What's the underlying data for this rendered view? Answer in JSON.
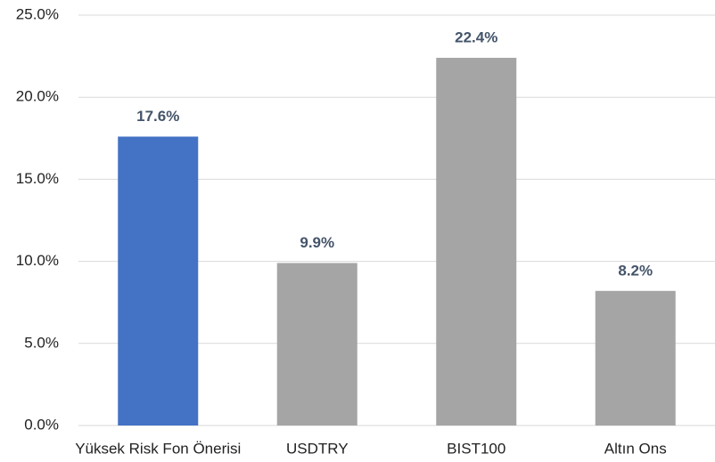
{
  "chart_data": {
    "type": "bar",
    "categories": [
      "Yüksek Risk Fon Önerisi",
      "USDTRY",
      "BIST100",
      "Altın Ons"
    ],
    "values": [
      17.6,
      9.9,
      22.4,
      8.2
    ],
    "value_labels": [
      "17.6%",
      "9.9%",
      "22.4%",
      "8.2%"
    ],
    "colors": [
      "#4472c4",
      "#a5a5a5",
      "#a5a5a5",
      "#a5a5a5"
    ],
    "ylim": [
      0,
      25
    ],
    "yticks": [
      {
        "value": 0,
        "label": "0.0%"
      },
      {
        "value": 5,
        "label": "5.0%"
      },
      {
        "value": 10,
        "label": "10.0%"
      },
      {
        "value": 15,
        "label": "15.0%"
      },
      {
        "value": 20,
        "label": "20.0%"
      },
      {
        "value": 25,
        "label": "25.0%"
      }
    ],
    "grid": true
  }
}
